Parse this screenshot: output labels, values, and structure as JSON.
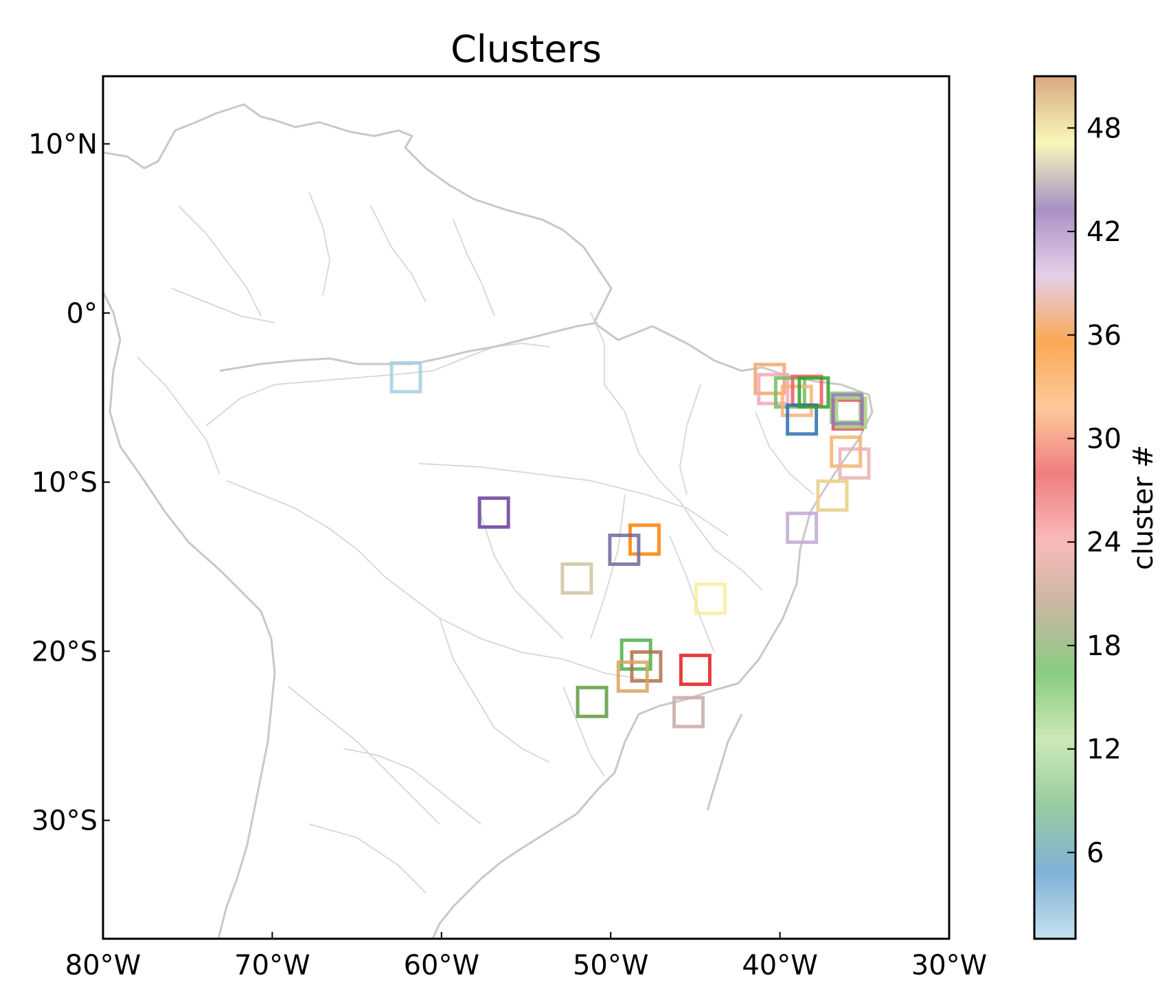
{
  "title": "Clusters",
  "map": {
    "projection": "lon-lat",
    "lon_range": [
      -80,
      -30
    ],
    "lat_range": [
      -37,
      14
    ],
    "lon_ticks": [
      {
        "value": -80,
        "label": "80°W"
      },
      {
        "value": -70,
        "label": "70°W"
      },
      {
        "value": -60,
        "label": "60°W"
      },
      {
        "value": -50,
        "label": "50°W"
      },
      {
        "value": -40,
        "label": "40°W"
      },
      {
        "value": -30,
        "label": "30°W"
      }
    ],
    "lat_ticks": [
      {
        "value": 10,
        "label": "10°N"
      },
      {
        "value": 0,
        "label": "0°"
      },
      {
        "value": -10,
        "label": "10°S"
      },
      {
        "value": -20,
        "label": "20°S"
      },
      {
        "value": -30,
        "label": "30°S"
      }
    ],
    "land_border_color": "#cccccc"
  },
  "colorbar": {
    "label": "cluster #",
    "range": [
      1,
      51
    ],
    "ticks": [
      {
        "value": 6,
        "label": "6"
      },
      {
        "value": 12,
        "label": "12"
      },
      {
        "value": 18,
        "label": "18"
      },
      {
        "value": 24,
        "label": "24"
      },
      {
        "value": 30,
        "label": "30"
      },
      {
        "value": 36,
        "label": "36"
      },
      {
        "value": 42,
        "label": "42"
      },
      {
        "value": 48,
        "label": "48"
      }
    ],
    "stops": [
      "#c6e1ef",
      "#7fb2d8",
      "#98cba0",
      "#cce9b6",
      "#89cc80",
      "#c7b8a2",
      "#f9baba",
      "#f07e80",
      "#fdc99a",
      "#fba857",
      "#e4cfe9",
      "#a891c5",
      "#f8f7ba",
      "#d9a982"
    ]
  },
  "chart_data": {
    "type": "scatter",
    "marker": "open-square",
    "points": [
      {
        "lon": -62.1,
        "lat": -3.8,
        "cluster": 1,
        "color": "#a6cee3"
      },
      {
        "lon": -56.9,
        "lat": -11.8,
        "cluster": 43,
        "color": "#6a3d9a"
      },
      {
        "lon": -48.0,
        "lat": -13.4,
        "cluster": 33,
        "color": "#ff7f00"
      },
      {
        "lon": -49.2,
        "lat": -14.0,
        "cluster": 42,
        "color": "#6a6a9f"
      },
      {
        "lon": -52.0,
        "lat": -15.7,
        "cluster": 17,
        "color": "#cfc3a0"
      },
      {
        "lon": -44.1,
        "lat": -16.9,
        "cluster": 47,
        "color": "#f7ec9b"
      },
      {
        "lon": -48.5,
        "lat": -20.2,
        "cluster": 14,
        "color": "#4daf4a"
      },
      {
        "lon": -47.9,
        "lat": -20.9,
        "cluster": 50,
        "color": "#b0704b"
      },
      {
        "lon": -48.7,
        "lat": -21.5,
        "cluster": 31,
        "color": "#d8a35f"
      },
      {
        "lon": -45.0,
        "lat": -21.1,
        "cluster": 25,
        "color": "#e31a1c"
      },
      {
        "lon": -51.1,
        "lat": -23.0,
        "cluster": 16,
        "color": "#5e9b3e"
      },
      {
        "lon": -45.4,
        "lat": -23.6,
        "cluster": 19,
        "color": "#c8aaa7"
      },
      {
        "lon": -40.6,
        "lat": -3.9,
        "cluster": 35,
        "color": "#f0a56c"
      },
      {
        "lon": -40.4,
        "lat": -4.5,
        "cluster": 20,
        "color": "#f5a8b8"
      },
      {
        "lon": -39.4,
        "lat": -4.7,
        "cluster": 13,
        "color": "#6fbf5e"
      },
      {
        "lon": -39.0,
        "lat": -5.2,
        "cluster": 32,
        "color": "#f8b37b"
      },
      {
        "lon": -38.4,
        "lat": -4.6,
        "cluster": 23,
        "color": "#f05a5c"
      },
      {
        "lon": -38.7,
        "lat": -6.3,
        "cluster": 5,
        "color": "#2b6fae"
      },
      {
        "lon": -38.0,
        "lat": -4.7,
        "cluster": 12,
        "color": "#33a02c"
      },
      {
        "lon": -36.1,
        "lat": -5.6,
        "cluster": 15,
        "color": "#8fc27a"
      },
      {
        "lon": -36.0,
        "lat": -6.0,
        "cluster": 26,
        "color": "#e5474a"
      },
      {
        "lon": -35.8,
        "lat": -5.9,
        "cluster": 11,
        "color": "#a7d07e"
      },
      {
        "lon": -36.0,
        "lat": -5.7,
        "cluster": 41,
        "color": "#8e7fb8"
      },
      {
        "lon": -36.1,
        "lat": -8.2,
        "cluster": 29,
        "color": "#f5b36e"
      },
      {
        "lon": -35.6,
        "lat": -8.9,
        "cluster": 21,
        "color": "#e7b1b1"
      },
      {
        "lon": -36.9,
        "lat": -10.8,
        "cluster": 46,
        "color": "#e8cf84"
      },
      {
        "lon": -38.7,
        "lat": -12.7,
        "cluster": 40,
        "color": "#c3a8d3"
      }
    ]
  }
}
